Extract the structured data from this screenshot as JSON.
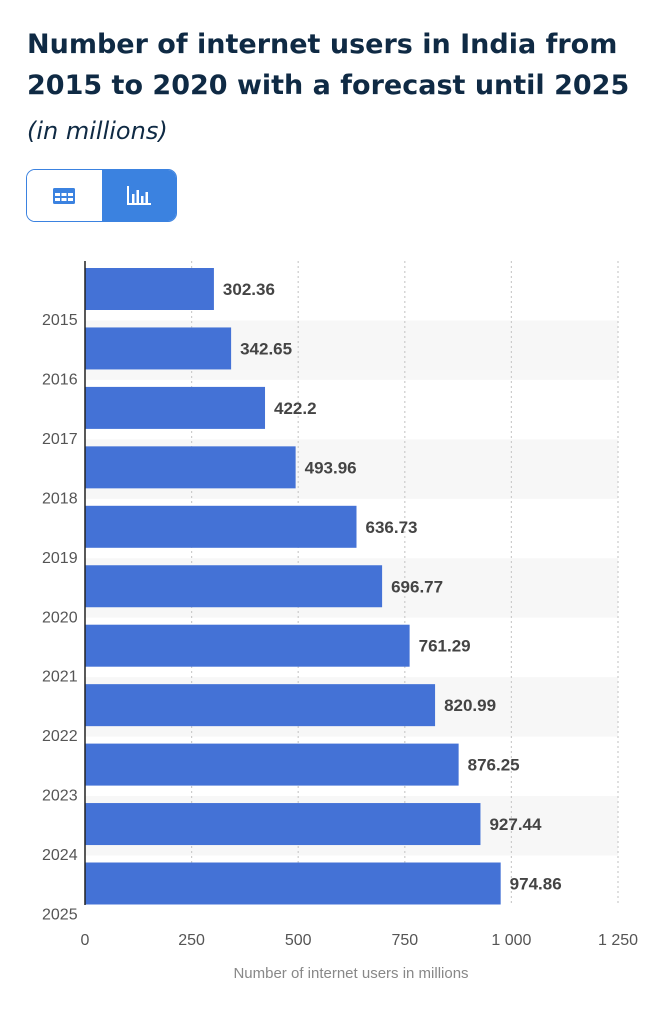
{
  "header": {
    "title": "Number of internet users in India from 2015 to 2020 with a forecast until 2025",
    "subtitle": "(in millions)"
  },
  "view_toggle": {
    "options": [
      {
        "name": "table-view",
        "icon": "table-icon",
        "selected": false
      },
      {
        "name": "chart-view",
        "icon": "bar-chart-icon",
        "selected": true
      }
    ]
  },
  "colors": {
    "bar": "#4472d6",
    "accent": "#3b82e0",
    "title": "#0f2a44",
    "band": "#f7f7f7",
    "grid": "#cccccc",
    "label": "#444444",
    "tick": "#555555",
    "axis_label": "#888888"
  },
  "chart_data": {
    "type": "bar",
    "orientation": "horizontal",
    "categories": [
      "2015",
      "2016",
      "2017",
      "2018",
      "2019",
      "2020",
      "2021",
      "2022",
      "2023",
      "2024",
      "2025"
    ],
    "values": [
      302.36,
      342.65,
      422.2,
      493.96,
      636.73,
      696.77,
      761.29,
      820.99,
      876.25,
      927.44,
      974.86
    ],
    "value_labels": [
      "302.36",
      "342.65",
      "422.2",
      "493.96",
      "636.73",
      "696.77",
      "761.29",
      "820.99",
      "876.25",
      "927.44",
      "974.86"
    ],
    "xlabel": "Number of internet users in millions",
    "ylabel": "",
    "xlim": [
      0,
      1250
    ],
    "xticks": [
      0,
      250,
      500,
      750,
      1000,
      1250
    ],
    "xtick_labels": [
      "0",
      "250",
      "500",
      "750",
      "1 000",
      "1 250"
    ],
    "grid": true,
    "legend": "none"
  }
}
